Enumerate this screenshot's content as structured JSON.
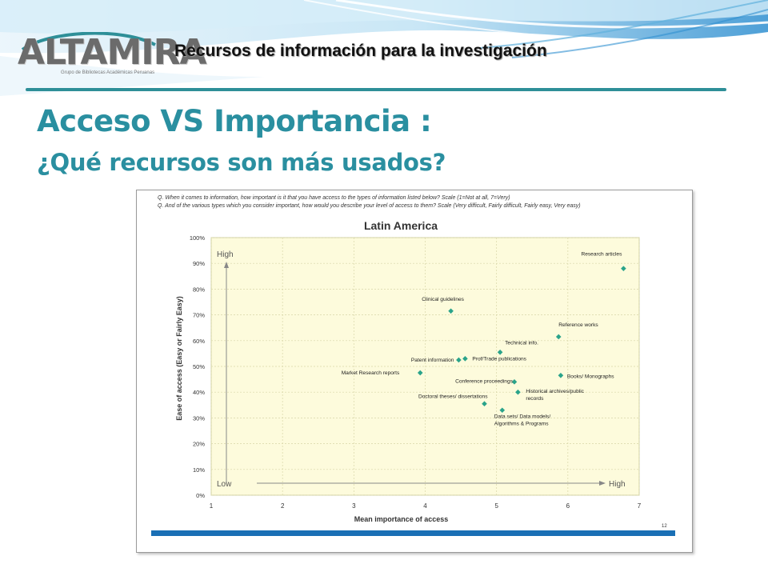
{
  "header": {
    "logo_text": "ALTAMIRA",
    "logo_subtitle": "Grupo de Bibliotecas Académicas Peruanas",
    "title": "Recursos de información para la investigación"
  },
  "slide": {
    "title": "Acceso VS Importancia :",
    "subtitle": "¿Qué recursos son más usados?"
  },
  "figure": {
    "question_1": "Q. When it comes to information, how important is it that you have access to the types of information listed below? Scale (1=Not at all, 7=Very)",
    "question_2": "Q. And of the various types which you consider important, how would you describe your level of access to them? Scale (Very difficult, Fairly difficult, Fairly easy, Very easy)",
    "page_number": "12",
    "bar_color": "#1a6fb5"
  },
  "chart_data": {
    "type": "scatter",
    "title": "Latin America",
    "xlabel": "Mean importance of access",
    "ylabel": "Ease of access (Easy or Fairly Easy)",
    "xlim": [
      1,
      7
    ],
    "ylim": [
      0,
      100
    ],
    "x_ticks": [
      "1",
      "2",
      "3",
      "4",
      "5",
      "6",
      "7"
    ],
    "y_ticks": [
      "0%",
      "10%",
      "20%",
      "30%",
      "40%",
      "50%",
      "60%",
      "70%",
      "80%",
      "90%",
      "100%"
    ],
    "grid": true,
    "background": "#fdfbdc",
    "point_color": "#2aa38a",
    "axis_annotations": {
      "y_high": "High",
      "y_low": "Low",
      "x_high": "High"
    },
    "points": [
      {
        "label": "Research articles",
        "x": 6.78,
        "y": 88
      },
      {
        "label": "Clinical guidelines",
        "x": 4.36,
        "y": 71.5
      },
      {
        "label": "Reference works",
        "x": 5.87,
        "y": 61.5
      },
      {
        "label": "Technical info.",
        "x": 5.05,
        "y": 55.5
      },
      {
        "label": "Patent information",
        "x": 4.47,
        "y": 52.5
      },
      {
        "label": "Prof/Trade publications",
        "x": 4.56,
        "y": 53
      },
      {
        "label": "Market Research reports",
        "x": 3.93,
        "y": 47.5
      },
      {
        "label": "Books/ Monographs",
        "x": 5.9,
        "y": 46.5
      },
      {
        "label": "Conference proceedings",
        "x": 5.25,
        "y": 44
      },
      {
        "label": "Historical archives/public records",
        "x": 5.3,
        "y": 40
      },
      {
        "label": "Doctoral theses/ dissertations",
        "x": 4.83,
        "y": 35.5
      },
      {
        "label": "Data sets/ Data models/ Algorithms & Programs",
        "x": 5.08,
        "y": 33
      }
    ]
  }
}
